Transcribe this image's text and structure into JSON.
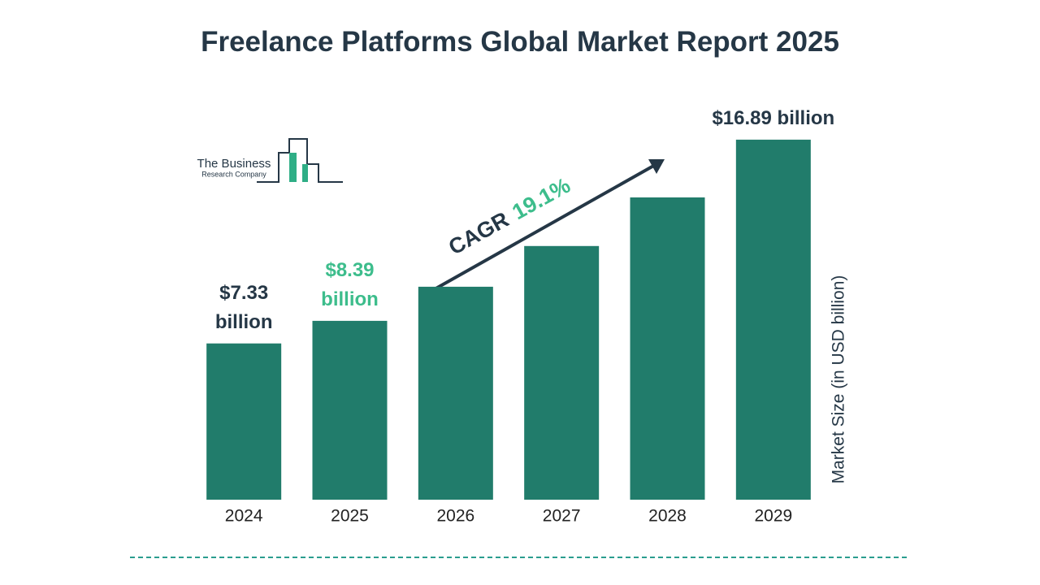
{
  "chart_data": {
    "type": "bar",
    "title": "Freelance Platforms Global Market Report 2025",
    "logo": {
      "line1": "The Business",
      "line2": "Research Company"
    },
    "y_label": "Market Size (in USD billion)",
    "categories": [
      "2024",
      "2025",
      "2026",
      "2027",
      "2028",
      "2029"
    ],
    "values": [
      7.33,
      8.39,
      9.99,
      11.9,
      14.18,
      16.89
    ],
    "value_labels": [
      "$7.33 billion",
      "$8.39 billion",
      null,
      null,
      null,
      "$16.89 billion"
    ],
    "value_label_colors": [
      "#253746",
      "#3dbd8c",
      null,
      null,
      null,
      "#253746"
    ],
    "color": "#217c6b",
    "ylim": [
      0,
      17
    ],
    "annotation": {
      "label": "CAGR",
      "value": "19.1%",
      "label_color": "#253746",
      "value_color": "#3dbd8c"
    }
  }
}
